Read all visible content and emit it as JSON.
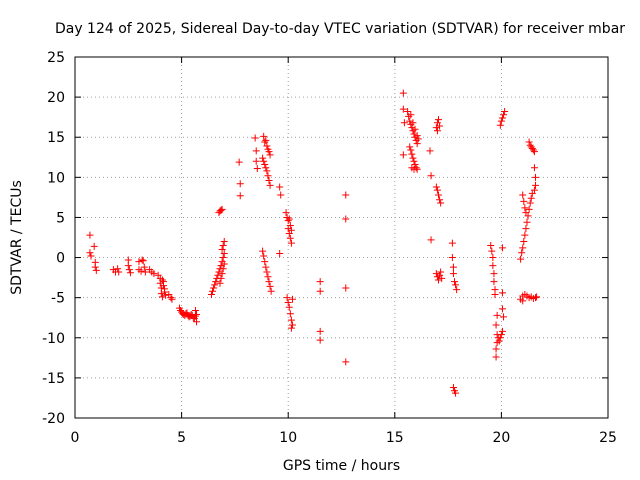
{
  "chart_data": {
    "type": "scatter",
    "title": "Day 124 of 2025, Sidereal Day-to-day VTEC variation (SDTVAR) for receiver mbar",
    "xlabel": "GPS time / hours",
    "ylabel": "SDTVAR / TECUs",
    "xlim": [
      0,
      25
    ],
    "ylim": [
      -20,
      25
    ],
    "xticks": [
      0,
      5,
      10,
      15,
      20,
      25
    ],
    "yticks": [
      -20,
      -15,
      -10,
      -5,
      0,
      5,
      10,
      15,
      20,
      25
    ],
    "grid": true,
    "marker": "+",
    "color": "#ff0000",
    "series": [
      {
        "name": "SDTVAR",
        "points": [
          [
            0.7,
            2.8
          ],
          [
            0.7,
            0.6
          ],
          [
            0.75,
            0.2
          ],
          [
            0.9,
            1.4
          ],
          [
            0.95,
            -0.6
          ],
          [
            0.95,
            -1.2
          ],
          [
            1.0,
            -1.6
          ],
          [
            1.8,
            -1.5
          ],
          [
            1.9,
            -1.8
          ],
          [
            2.0,
            -1.4
          ],
          [
            2.05,
            -1.8
          ],
          [
            2.5,
            -0.3
          ],
          [
            2.5,
            -1.0
          ],
          [
            2.55,
            -1.5
          ],
          [
            2.6,
            -1.9
          ],
          [
            3.0,
            -0.5
          ],
          [
            3.0,
            -1.5
          ],
          [
            3.1,
            -1.7
          ],
          [
            3.15,
            -0.3
          ],
          [
            3.2,
            -0.4
          ],
          [
            3.25,
            -1.2
          ],
          [
            3.3,
            -1.8
          ],
          [
            3.5,
            -1.5
          ],
          [
            3.6,
            -1.8
          ],
          [
            3.7,
            -2.0
          ],
          [
            3.9,
            -2.2
          ],
          [
            4.0,
            -2.6
          ],
          [
            4.0,
            -3.2
          ],
          [
            4.05,
            -3.8
          ],
          [
            4.05,
            -4.5
          ],
          [
            4.1,
            -4.9
          ],
          [
            4.1,
            -2.8
          ],
          [
            4.15,
            -3.0
          ],
          [
            4.15,
            -3.5
          ],
          [
            4.2,
            -3.9
          ],
          [
            4.2,
            -4.3
          ],
          [
            4.25,
            -4.7
          ],
          [
            4.4,
            -4.6
          ],
          [
            4.5,
            -5.0
          ],
          [
            4.55,
            -5.2
          ],
          [
            4.9,
            -6.3
          ],
          [
            4.95,
            -6.6
          ],
          [
            5.0,
            -6.8
          ],
          [
            5.05,
            -7.0
          ],
          [
            5.1,
            -7.1
          ],
          [
            5.15,
            -7.2
          ],
          [
            5.2,
            -7.0
          ],
          [
            5.25,
            -6.9
          ],
          [
            5.3,
            -7.2
          ],
          [
            5.35,
            -7.4
          ],
          [
            5.4,
            -7.3
          ],
          [
            5.45,
            -7.1
          ],
          [
            5.5,
            -7.2
          ],
          [
            5.55,
            -7.5
          ],
          [
            5.6,
            -7.6
          ],
          [
            5.65,
            -7.3
          ],
          [
            5.65,
            -6.6
          ],
          [
            5.7,
            -7.1
          ],
          [
            5.7,
            -8.0
          ],
          [
            6.4,
            -4.6
          ],
          [
            6.45,
            -4.2
          ],
          [
            6.5,
            -3.8
          ],
          [
            6.55,
            -3.4
          ],
          [
            6.6,
            -3.0
          ],
          [
            6.65,
            -2.6
          ],
          [
            6.7,
            -2.2
          ],
          [
            6.75,
            -1.8
          ],
          [
            6.8,
            -1.4
          ],
          [
            6.85,
            -1.0
          ],
          [
            6.9,
            -0.5
          ],
          [
            6.95,
            0.0
          ],
          [
            7.0,
            0.5
          ],
          [
            6.9,
            1.0
          ],
          [
            6.95,
            1.5
          ],
          [
            7.0,
            2.0
          ],
          [
            6.8,
            -3.2
          ],
          [
            6.85,
            -2.6
          ],
          [
            6.9,
            -2.0
          ],
          [
            6.95,
            -1.4
          ],
          [
            7.0,
            -0.8
          ],
          [
            6.75,
            5.6
          ],
          [
            6.8,
            5.8
          ],
          [
            6.85,
            5.9
          ],
          [
            6.9,
            6.0
          ],
          [
            7.7,
            11.9
          ],
          [
            7.75,
            9.2
          ],
          [
            7.75,
            7.7
          ],
          [
            8.45,
            14.9
          ],
          [
            8.5,
            13.3
          ],
          [
            8.5,
            12.0
          ],
          [
            8.55,
            11.1
          ],
          [
            8.85,
            15.1
          ],
          [
            8.9,
            14.4
          ],
          [
            8.95,
            14.6
          ],
          [
            9.0,
            13.9
          ],
          [
            9.05,
            13.5
          ],
          [
            9.1,
            13.2
          ],
          [
            9.15,
            12.8
          ],
          [
            8.8,
            12.4
          ],
          [
            8.85,
            12.0
          ],
          [
            8.9,
            11.6
          ],
          [
            8.95,
            11.2
          ],
          [
            9.0,
            10.8
          ],
          [
            9.05,
            10.2
          ],
          [
            9.1,
            9.6
          ],
          [
            9.15,
            9.0
          ],
          [
            8.8,
            0.8
          ],
          [
            8.85,
            0.2
          ],
          [
            8.9,
            -0.5
          ],
          [
            8.95,
            -1.2
          ],
          [
            9.0,
            -1.8
          ],
          [
            9.05,
            -2.4
          ],
          [
            9.1,
            -3.0
          ],
          [
            9.15,
            -3.6
          ],
          [
            9.2,
            -4.2
          ],
          [
            9.6,
            8.8
          ],
          [
            9.65,
            7.8
          ],
          [
            9.6,
            0.5
          ],
          [
            9.9,
            5.6
          ],
          [
            9.95,
            5.0
          ],
          [
            10.0,
            4.6
          ],
          [
            10.0,
            3.6
          ],
          [
            10.05,
            3.0
          ],
          [
            10.1,
            2.4
          ],
          [
            10.15,
            1.8
          ],
          [
            10.1,
            4.0
          ],
          [
            10.05,
            4.8
          ],
          [
            10.15,
            3.4
          ],
          [
            9.95,
            -5.0
          ],
          [
            10.0,
            -5.6
          ],
          [
            10.05,
            -6.2
          ],
          [
            10.1,
            -7.0
          ],
          [
            10.15,
            -7.8
          ],
          [
            10.2,
            -8.4
          ],
          [
            10.15,
            -8.8
          ],
          [
            10.2,
            -5.2
          ],
          [
            11.5,
            -3.0
          ],
          [
            11.5,
            -4.2
          ],
          [
            11.5,
            -9.2
          ],
          [
            11.5,
            -10.3
          ],
          [
            12.7,
            7.8
          ],
          [
            12.7,
            4.8
          ],
          [
            12.7,
            -3.8
          ],
          [
            12.7,
            -13.0
          ],
          [
            15.4,
            20.5
          ],
          [
            15.4,
            18.5
          ],
          [
            15.45,
            16.8
          ],
          [
            15.4,
            12.8
          ],
          [
            15.6,
            18.2
          ],
          [
            15.65,
            17.6
          ],
          [
            15.7,
            17.0
          ],
          [
            15.75,
            16.6
          ],
          [
            15.8,
            16.2
          ],
          [
            15.85,
            15.8
          ],
          [
            15.9,
            15.4
          ],
          [
            15.95,
            15.0
          ],
          [
            16.0,
            14.6
          ],
          [
            16.05,
            14.2
          ],
          [
            15.75,
            17.8
          ],
          [
            15.85,
            16.8
          ],
          [
            15.95,
            16.0
          ],
          [
            16.05,
            15.2
          ],
          [
            16.1,
            14.8
          ],
          [
            15.7,
            13.8
          ],
          [
            15.75,
            13.4
          ],
          [
            15.8,
            12.9
          ],
          [
            15.85,
            12.4
          ],
          [
            15.9,
            12.0
          ],
          [
            15.95,
            11.6
          ],
          [
            16.0,
            11.2
          ],
          [
            16.05,
            11.0
          ],
          [
            15.8,
            11.2
          ],
          [
            15.9,
            11.0
          ],
          [
            16.65,
            13.3
          ],
          [
            16.7,
            10.2
          ],
          [
            16.7,
            2.2
          ],
          [
            16.95,
            16.2
          ],
          [
            17.0,
            16.8
          ],
          [
            17.05,
            17.2
          ],
          [
            17.1,
            16.4
          ],
          [
            17.0,
            15.8
          ],
          [
            16.95,
            8.8
          ],
          [
            17.0,
            8.4
          ],
          [
            17.05,
            7.8
          ],
          [
            17.1,
            7.2
          ],
          [
            17.15,
            6.8
          ],
          [
            16.95,
            -2.0
          ],
          [
            17.0,
            -2.4
          ],
          [
            17.05,
            -2.8
          ],
          [
            17.1,
            -2.2
          ],
          [
            17.15,
            -1.8
          ],
          [
            17.2,
            -2.6
          ],
          [
            17.7,
            1.8
          ],
          [
            17.7,
            0.0
          ],
          [
            17.75,
            -1.2
          ],
          [
            17.75,
            -2.0
          ],
          [
            17.8,
            -3.0
          ],
          [
            17.85,
            -3.4
          ],
          [
            17.9,
            -4.0
          ],
          [
            17.75,
            -16.2
          ],
          [
            17.8,
            -16.6
          ],
          [
            17.85,
            -16.9
          ],
          [
            19.5,
            1.5
          ],
          [
            19.55,
            0.8
          ],
          [
            19.6,
            0.0
          ],
          [
            19.6,
            -1.0
          ],
          [
            19.65,
            -2.0
          ],
          [
            19.65,
            -3.0
          ],
          [
            19.7,
            -4.0
          ],
          [
            19.7,
            -4.6
          ],
          [
            19.8,
            -7.2
          ],
          [
            19.75,
            -8.4
          ],
          [
            19.8,
            -9.6
          ],
          [
            19.85,
            -10.0
          ],
          [
            19.9,
            -10.4
          ],
          [
            19.95,
            -10.0
          ],
          [
            20.0,
            -9.6
          ],
          [
            20.05,
            -9.2
          ],
          [
            19.8,
            -10.6
          ],
          [
            19.75,
            -11.4
          ],
          [
            19.75,
            -12.4
          ],
          [
            19.95,
            16.5
          ],
          [
            20.0,
            17.0
          ],
          [
            20.05,
            17.4
          ],
          [
            20.1,
            17.8
          ],
          [
            20.15,
            18.2
          ],
          [
            20.05,
            -6.4
          ],
          [
            20.1,
            -7.4
          ],
          [
            20.05,
            -4.4
          ],
          [
            20.05,
            1.2
          ],
          [
            20.9,
            -0.2
          ],
          [
            20.95,
            0.6
          ],
          [
            21.0,
            1.2
          ],
          [
            21.05,
            2.0
          ],
          [
            21.1,
            2.8
          ],
          [
            21.15,
            3.6
          ],
          [
            21.2,
            4.4
          ],
          [
            21.25,
            5.2
          ],
          [
            21.3,
            6.0
          ],
          [
            21.35,
            6.8
          ],
          [
            21.4,
            7.4
          ],
          [
            21.45,
            8.0
          ],
          [
            21.0,
            7.8
          ],
          [
            21.05,
            7.0
          ],
          [
            21.1,
            6.2
          ],
          [
            21.15,
            5.6
          ],
          [
            21.3,
            14.4
          ],
          [
            21.35,
            14.0
          ],
          [
            21.4,
            13.8
          ],
          [
            21.45,
            13.6
          ],
          [
            21.5,
            13.4
          ],
          [
            21.55,
            13.2
          ],
          [
            21.55,
            11.2
          ],
          [
            21.6,
            10.0
          ],
          [
            21.6,
            9.0
          ],
          [
            21.55,
            8.4
          ],
          [
            21.0,
            -4.8
          ],
          [
            21.1,
            -4.6
          ],
          [
            21.2,
            -4.8
          ],
          [
            21.3,
            -5.0
          ],
          [
            21.4,
            -4.9
          ],
          [
            21.5,
            -5.1
          ],
          [
            21.6,
            -5.0
          ],
          [
            21.65,
            -4.9
          ],
          [
            20.9,
            -5.2
          ],
          [
            21.0,
            -5.4
          ]
        ]
      }
    ]
  }
}
